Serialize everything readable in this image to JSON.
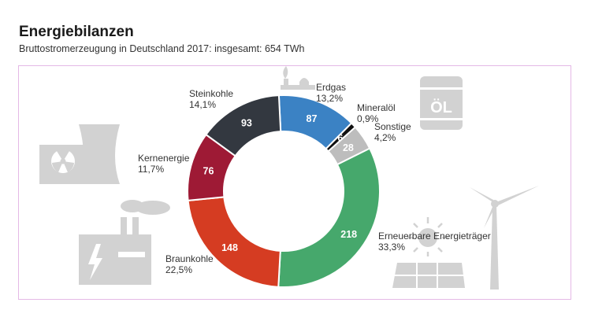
{
  "header": {
    "title": "Energiebilanzen",
    "subtitle": "Bruttostromerzeugung in Deutschland 2017: insgesamt: 654 TWh"
  },
  "icons": [
    "nuclear-plant-icon",
    "coal-plant-icon",
    "gas-flame-icon",
    "oil-barrel-icon",
    "solar-panel-icon",
    "wind-turbine-icon"
  ],
  "icon_text": {
    "oil_barrel": "ÖL"
  },
  "chart_data": {
    "type": "pie",
    "variant": "donut",
    "title": "Energiebilanzen",
    "subtitle": "Bruttostromerzeugung in Deutschland 2017: insgesamt: 654 TWh",
    "total": 654,
    "unit": "TWh",
    "segments": [
      {
        "name": "Erdgas",
        "value": 87,
        "percent": "13,2%",
        "color": "#3b82c4"
      },
      {
        "name": "Mineralöl",
        "value": 6,
        "percent": "0,9%",
        "color": "#111111"
      },
      {
        "name": "Sonstige",
        "value": 28,
        "percent": "4,2%",
        "color": "#bdbdbd"
      },
      {
        "name": "Erneuerbare Energieträger",
        "value": 218,
        "percent": "33,3%",
        "color": "#46a86c"
      },
      {
        "name": "Braunkohle",
        "value": 148,
        "percent": "22,5%",
        "color": "#d53c22"
      },
      {
        "name": "Kernenergie",
        "value": 76,
        "percent": "11,7%",
        "color": "#9e1a35"
      },
      {
        "name": "Steinkohle",
        "value": 93,
        "percent": "14,1%",
        "color": "#333840"
      }
    ]
  }
}
